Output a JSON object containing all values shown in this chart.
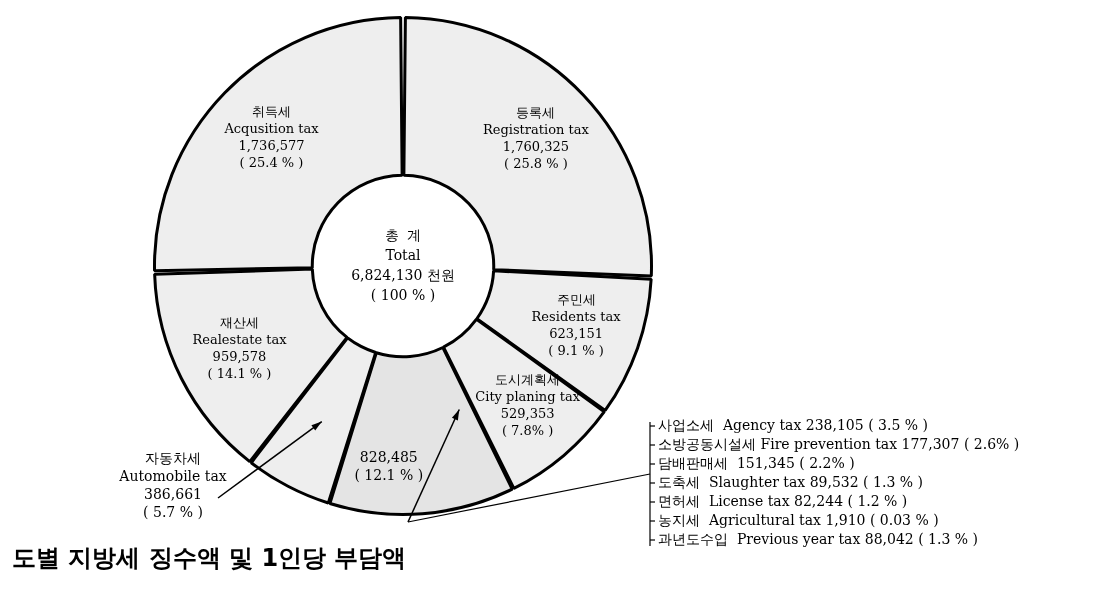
{
  "chart_data": {
    "type": "donut",
    "title": "도별 지방세 징수액 및 1인당 부담액",
    "categories": [
      "등록세\nRegistration tax",
      "주민세\nResidents tax",
      "도시계획세\nCity planing tax",
      null,
      "자동차세\nAutomobile tax",
      "재산세\nRealestate tax",
      "취득세\nAcqusition tax"
    ],
    "values": [
      1760325,
      623151,
      529353,
      828485,
      386661,
      959578,
      1736577
    ],
    "value_labels": [
      "1,760,325\n( 25.8 % )",
      "623,151\n( 9.1 % )",
      "529,353\n( 7.8% )",
      "828,485\n( 12.1 % )",
      "386,661\n( 5.7 % )",
      "959,578\n( 14.1 % )",
      "1,736,577\n( 25.4 % )"
    ],
    "colors": [
      "#eeeeee",
      "#eeeeee",
      "#eeeeee",
      "#e4e4e4",
      "#eeeeee",
      "#eeeeee",
      "#eeeeee"
    ],
    "legend": false,
    "annotations": [
      "총  계\nTotal\n6,824,130 천원\n( 100 % )",
      "사업소세  Agency tax 238,105 ( 3.5 % )",
      "소방공동시설세 Fire prevention tax 177,307 ( 2.6% )",
      "담배판매세  151,345 ( 2.2% )",
      "도축세  Slaughter tax 89,532 ( 1.3 % )",
      "면허세  License tax 82,244 ( 1.2 % )",
      "농지세  Agricultural tax 1,910 ( 0.03 % )",
      "과년도수입  Previous year tax 88,042 ( 1.3 % )"
    ]
  }
}
